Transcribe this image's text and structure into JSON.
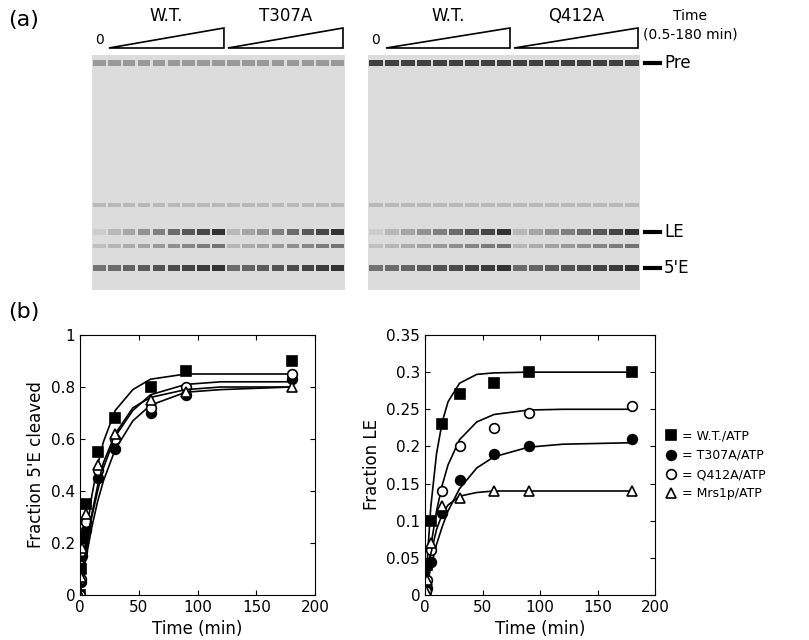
{
  "panel_a": {
    "panel_label": "(a)",
    "gels": [
      {
        "zero_label": "0",
        "groups": [
          "W.T.",
          "T307A"
        ]
      },
      {
        "zero_label": "0",
        "groups": [
          "W.T.",
          "Q412A"
        ]
      }
    ],
    "time_label": "Time",
    "time_range_label": "(0.5-180 min)",
    "bands": [
      "Pre",
      "LE",
      "5'E"
    ]
  },
  "panel_b_label": "(b)",
  "chart_data": [
    {
      "type": "line",
      "xlabel": "Time (min)",
      "ylabel": "Fraction 5'E cleaved",
      "x": [
        0,
        0.5,
        2,
        5,
        15,
        30,
        60,
        90,
        180
      ],
      "fit_x": [
        0,
        5,
        10,
        15,
        20,
        30,
        45,
        60,
        90,
        120,
        180
      ],
      "xlim": [
        0,
        200
      ],
      "xticks": [
        0,
        50,
        100,
        150,
        200
      ],
      "ylim": [
        0,
        1
      ],
      "yticks": [
        0,
        0.2,
        0.4,
        0.6,
        0.8,
        1
      ],
      "series": [
        {
          "color": "#000000",
          "marker": "square",
          "values": [
            0,
            0.1,
            0.22,
            0.35,
            0.55,
            0.68,
            0.8,
            0.86,
            0.9
          ],
          "fit_values": [
            0,
            0.22,
            0.38,
            0.5,
            0.59,
            0.71,
            0.79,
            0.83,
            0.85,
            0.85,
            0.85
          ]
        },
        {
          "color": "#000000",
          "marker": "circle",
          "values": [
            0,
            0.05,
            0.15,
            0.25,
            0.45,
            0.56,
            0.7,
            0.77,
            0.83
          ],
          "fit_values": [
            0,
            0.14,
            0.26,
            0.36,
            0.44,
            0.56,
            0.67,
            0.73,
            0.78,
            0.79,
            0.8
          ]
        },
        {
          "color": "#000000",
          "marker": "open_circle",
          "values": [
            0,
            0.06,
            0.17,
            0.28,
            0.48,
            0.6,
            0.72,
            0.8,
            0.85
          ],
          "fit_values": [
            0,
            0.16,
            0.3,
            0.4,
            0.49,
            0.61,
            0.71,
            0.77,
            0.81,
            0.82,
            0.82
          ]
        },
        {
          "color": "#000000",
          "marker": "open_triangle",
          "values": [
            0,
            0.07,
            0.18,
            0.31,
            0.5,
            0.62,
            0.75,
            0.78,
            0.8
          ],
          "fit_values": [
            0,
            0.18,
            0.31,
            0.42,
            0.51,
            0.62,
            0.72,
            0.76,
            0.79,
            0.8,
            0.8
          ]
        }
      ]
    },
    {
      "type": "line",
      "xlabel": "Time (min)",
      "ylabel": "Fraction LE",
      "x": [
        0,
        0.5,
        2,
        5,
        15,
        30,
        60,
        90,
        180
      ],
      "fit_x": [
        0,
        5,
        10,
        15,
        20,
        30,
        45,
        60,
        90,
        120,
        180
      ],
      "xlim": [
        0,
        200
      ],
      "xticks": [
        0,
        50,
        100,
        150,
        200
      ],
      "ylim": [
        0,
        0.35
      ],
      "yticks": [
        0,
        0.05,
        0.1,
        0.15,
        0.2,
        0.25,
        0.3,
        0.35
      ],
      "legend": "center left",
      "series": [
        {
          "name": "= W.T./ATP",
          "color": "#000000",
          "marker": "square",
          "values": [
            0,
            0.01,
            0.04,
            0.1,
            0.23,
            0.27,
            0.285,
            0.3,
            0.3
          ],
          "fit_values": [
            0,
            0.118,
            0.19,
            0.233,
            0.26,
            0.285,
            0.297,
            0.299,
            0.3,
            0.3,
            0.3
          ]
        },
        {
          "name": "= T307A/ATP",
          "color": "#000000",
          "marker": "circle",
          "values": [
            0,
            0.005,
            0.01,
            0.045,
            0.11,
            0.155,
            0.19,
            0.2,
            0.21
          ],
          "fit_values": [
            0,
            0.037,
            0.068,
            0.092,
            0.113,
            0.143,
            0.171,
            0.186,
            0.199,
            0.203,
            0.205
          ]
        },
        {
          "name": "= Q412A/ATP",
          "color": "#000000",
          "marker": "open_circle",
          "values": [
            0,
            0.005,
            0.02,
            0.06,
            0.14,
            0.2,
            0.225,
            0.245,
            0.255
          ],
          "fit_values": [
            0,
            0.065,
            0.113,
            0.148,
            0.175,
            0.209,
            0.233,
            0.243,
            0.249,
            0.25,
            0.25
          ]
        },
        {
          "name": "= Mrs1p/ATP",
          "color": "#000000",
          "marker": "open_triangle",
          "values": [
            0,
            0.005,
            0.02,
            0.07,
            0.12,
            0.13,
            0.14,
            0.14,
            0.14
          ],
          "fit_values": [
            0,
            0.055,
            0.088,
            0.109,
            0.121,
            0.133,
            0.138,
            0.14,
            0.14,
            0.14,
            0.14
          ]
        }
      ]
    }
  ]
}
